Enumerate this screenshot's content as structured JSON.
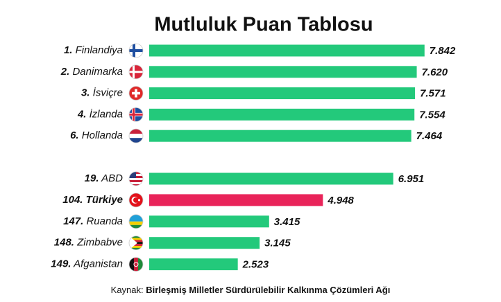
{
  "chart_data": {
    "type": "bar",
    "orientation": "horizontal",
    "title": "Mutluluk Puan Tablosu",
    "ranks": [
      "1.",
      "2.",
      "3.",
      "4.",
      "6.",
      "19.",
      "104.",
      "147.",
      "148.",
      "149."
    ],
    "categories": [
      "Finlandiya",
      "Danimarka",
      "İsviçre",
      "İzlanda",
      "Hollanda",
      "ABD",
      "Türkiye",
      "Ruanda",
      "Zimbabve",
      "Afganistan"
    ],
    "values": [
      7.842,
      7.62,
      7.571,
      7.554,
      7.464,
      6.951,
      4.948,
      3.415,
      3.145,
      2.523
    ],
    "value_labels": [
      "7.842",
      "7.620",
      "7.571",
      "7.554",
      "7.464",
      "6.951",
      "4.948",
      "3.415",
      "3.145",
      "2.523"
    ],
    "colors": [
      "#23c97b",
      "#23c97b",
      "#23c97b",
      "#23c97b",
      "#23c97b",
      "#23c97b",
      "#e9245a",
      "#23c97b",
      "#23c97b",
      "#23c97b"
    ],
    "source": {
      "prefix": "Kaynak:",
      "text": "Birleşmiş Milletler Sürdürülebilir Kalkınma Çözümleri Ağı"
    }
  }
}
